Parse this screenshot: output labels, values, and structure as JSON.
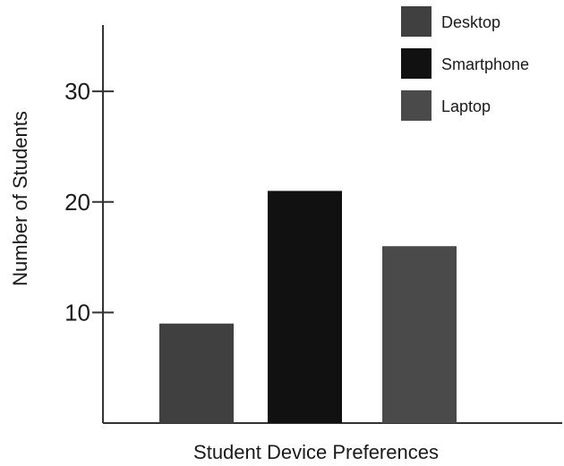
{
  "chart_data": {
    "type": "bar",
    "categories": [
      "Desktop",
      "Smartphone",
      "Laptop"
    ],
    "values": [
      9,
      21,
      16
    ],
    "title": "",
    "xlabel": "Student Device Preferences",
    "ylabel": "Number of Students",
    "ylim": [
      0,
      36
    ],
    "yticks": [
      10,
      20,
      30
    ],
    "grid": false,
    "legend_position": "top-right",
    "colors": [
      "#404040",
      "#111111",
      "#4a4a4a"
    ]
  }
}
